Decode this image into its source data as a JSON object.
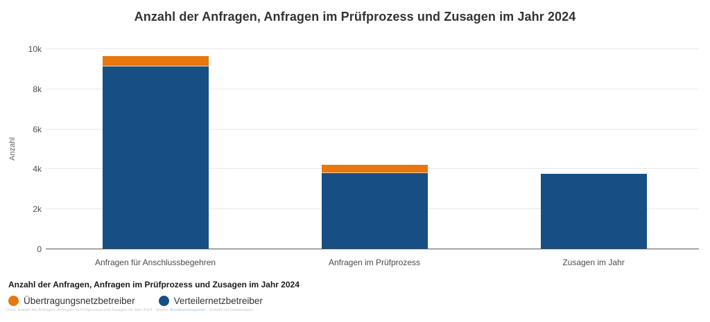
{
  "chart_data": {
    "type": "bar",
    "variant": "stacked-vertical-columns",
    "title": "Anzahl der Anfragen, Anfragen im Prüfprozess und Zusagen im Jahr 2024",
    "xlabel": "",
    "ylabel": "Anzahl",
    "categories": [
      "Anfragen für Anschlussbegehren",
      "Anfragen im Prüfprozess",
      "Zusagen im Jahr"
    ],
    "series": [
      {
        "name": "Verteilernetzbetreiber",
        "color": "#174F85",
        "values": [
          9150,
          3800,
          3780
        ]
      },
      {
        "name": "Übertragungsnetzbetreiber",
        "color": "#E8770D",
        "values": [
          500,
          420,
          0
        ]
      }
    ],
    "stack_note": "Verteilernetzbetreiber (blue) bottom segment, Übertragungsnetzbetreiber (orange) top segment",
    "ylim": [
      0,
      10000
    ],
    "yticks": [
      {
        "value": 0,
        "label": "0"
      },
      {
        "value": 2000,
        "label": "2k"
      },
      {
        "value": 4000,
        "label": "4k"
      },
      {
        "value": 6000,
        "label": "6k"
      },
      {
        "value": 8000,
        "label": "8k"
      },
      {
        "value": 10000,
        "label": "10k"
      }
    ],
    "grid": "horizontal",
    "legend_position": "bottom-left"
  },
  "footer": {
    "legend_title": "Anzahl der Anfragen, Anfragen im Prüfprozess und Zusagen im Jahr 2024",
    "legend": [
      {
        "label": "Übertragungsnetzbetreiber",
        "color": "#E8770D"
      },
      {
        "label": "Verteilernetzbetreiber",
        "color": "#174F85"
      }
    ],
    "attribution": {
      "part1": "Chart: Anzahl der Anfragen, Anfragen im Prüfprozess und Zusagen im Jahr 2024 · Quelle: ",
      "link": "Bundesnetzagentur",
      "part2": " · Erstellt mit Datawrapper"
    }
  },
  "colors": {
    "title_text": "#333333",
    "axis_text": "#4d4d4d",
    "gridline": "#e9e9e9",
    "baseline": "#555555",
    "background": "#ffffff"
  }
}
